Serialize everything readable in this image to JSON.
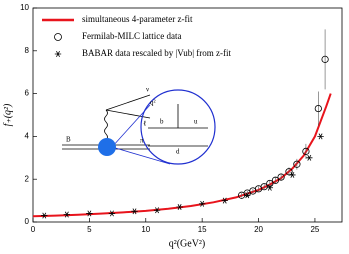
{
  "chart_data": {
    "type": "line",
    "x_label": "q²(GeV²)",
    "y_label": "f₊(q²)",
    "xlim": [
      0,
      27.4
    ],
    "ylim": [
      0,
      10
    ],
    "xticks": [
      0,
      5,
      10,
      15,
      20,
      25
    ],
    "yticks": [
      0,
      2,
      4,
      6,
      8,
      10
    ],
    "legend": "upper left",
    "series": [
      {
        "name": "simultaneous 4-parameter z-fit",
        "marker": "line",
        "color": "#e8141c",
        "x": [
          0,
          2,
          4,
          6,
          8,
          10,
          12,
          14,
          16,
          18,
          20,
          21,
          22,
          23,
          24,
          25,
          26,
          26.4
        ],
        "values": [
          0.27,
          0.3,
          0.34,
          0.39,
          0.45,
          0.52,
          0.62,
          0.75,
          0.92,
          1.15,
          1.5,
          1.75,
          2.05,
          2.5,
          3.1,
          4.0,
          5.4,
          6.0
        ]
      },
      {
        "name": "Fermilab-MILC lattice data",
        "marker": "circle",
        "color": "#000000",
        "x": [
          18.5,
          19,
          19.5,
          20,
          20.5,
          21,
          21.5,
          22,
          22.7,
          23.4,
          24.2,
          25.3,
          25.9
        ],
        "values": [
          1.25,
          1.35,
          1.45,
          1.55,
          1.65,
          1.8,
          1.95,
          2.1,
          2.35,
          2.7,
          3.3,
          5.3,
          7.6
        ],
        "errors": [
          0.1,
          0.1,
          0.1,
          0.12,
          0.12,
          0.14,
          0.15,
          0.17,
          0.2,
          0.25,
          0.35,
          0.8,
          1.4
        ]
      },
      {
        "name": "BABAR data rescaled by |Vub| from z-fit",
        "marker": "asterisk",
        "color": "#000000",
        "x": [
          1,
          3,
          5,
          7,
          9,
          11,
          13,
          15,
          17,
          19,
          21,
          23,
          24.5,
          25.5
        ],
        "values": [
          0.3,
          0.35,
          0.4,
          0.4,
          0.5,
          0.55,
          0.7,
          0.85,
          1.0,
          1.25,
          1.6,
          2.2,
          3.0,
          4.0
        ]
      }
    ],
    "inset_labels": {
      "B": "B",
      "pi": "π",
      "nu": "ν",
      "lepton": "ℓ",
      "q2": "q²",
      "b": "b",
      "u": "u",
      "d": "d"
    }
  }
}
